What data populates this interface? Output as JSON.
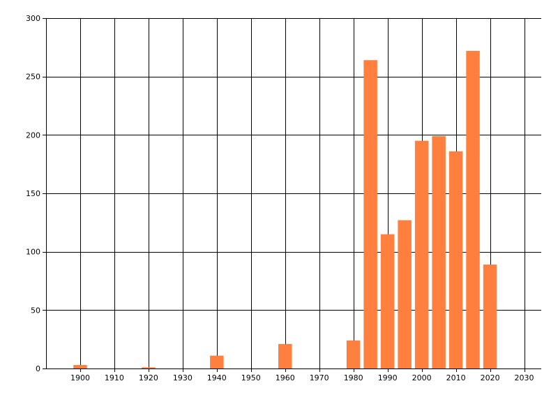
{
  "chart_data": {
    "type": "bar",
    "title": "",
    "xlabel": "",
    "ylabel": "",
    "x": [
      1900,
      1920,
      1940,
      1960,
      1980,
      1985,
      1990,
      1995,
      2000,
      2005,
      2010,
      2015,
      2020
    ],
    "values": [
      3,
      1,
      11,
      21,
      24,
      264,
      115,
      127,
      195,
      199,
      186,
      272,
      89
    ],
    "xlim": [
      1890,
      2035
    ],
    "ylim": [
      0,
      300
    ],
    "x_ticks": [
      1900,
      1910,
      1920,
      1930,
      1940,
      1950,
      1960,
      1970,
      1980,
      1990,
      2000,
      2010,
      2020,
      2030
    ],
    "y_ticks": [
      0,
      50,
      100,
      150,
      200,
      250,
      300
    ],
    "bar_color": "#ff7f3f",
    "grid": true,
    "legend": "none"
  }
}
